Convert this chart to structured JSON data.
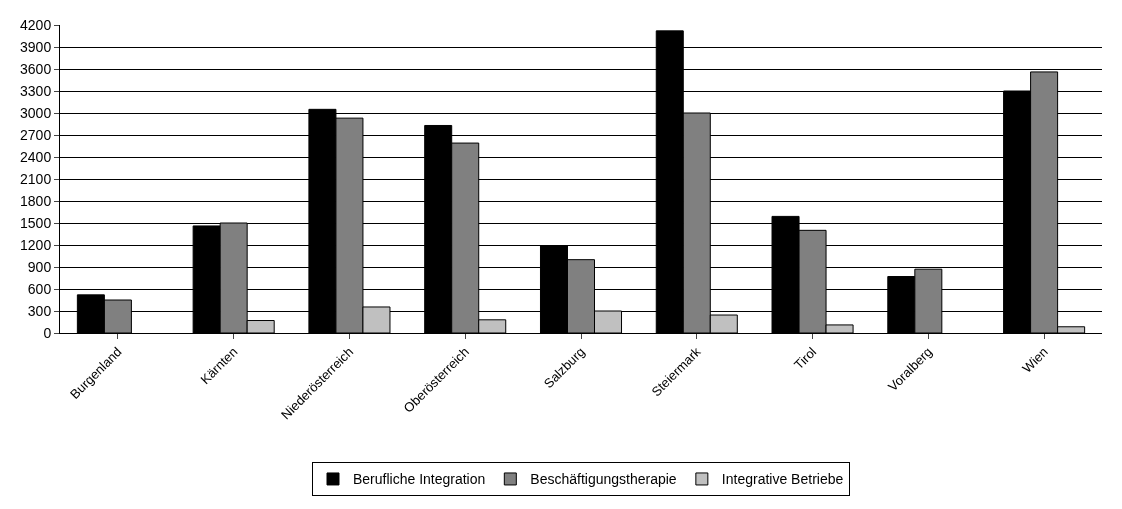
{
  "chart_data": {
    "type": "bar",
    "categories": [
      "Burgenland",
      "Kärnten",
      "Niederösterreich",
      "Oberösterreich",
      "Salzburg",
      "Steiermark",
      "Tirol",
      "Voralberg",
      "Wien"
    ],
    "series": [
      {
        "name": "Berufliche Integration",
        "color": "#000000",
        "values": [
          520,
          1460,
          3050,
          2830,
          1190,
          4120,
          1590,
          770,
          3300
        ]
      },
      {
        "name": "Beschäftigungstherapie",
        "color": "#808080",
        "values": [
          450,
          1500,
          2930,
          2590,
          1000,
          3000,
          1400,
          870,
          3560
        ]
      },
      {
        "name": "Integrative Betriebe",
        "color": "#c0c0c0",
        "values": [
          null,
          170,
          355,
          180,
          300,
          245,
          110,
          null,
          85
        ]
      }
    ],
    "ylim": [
      0,
      4200
    ],
    "yticks": [
      0,
      300,
      600,
      900,
      1200,
      1500,
      1800,
      2100,
      2400,
      2700,
      3000,
      3300,
      3600,
      3900,
      4200
    ],
    "grid": "y",
    "legend": "bottom"
  }
}
